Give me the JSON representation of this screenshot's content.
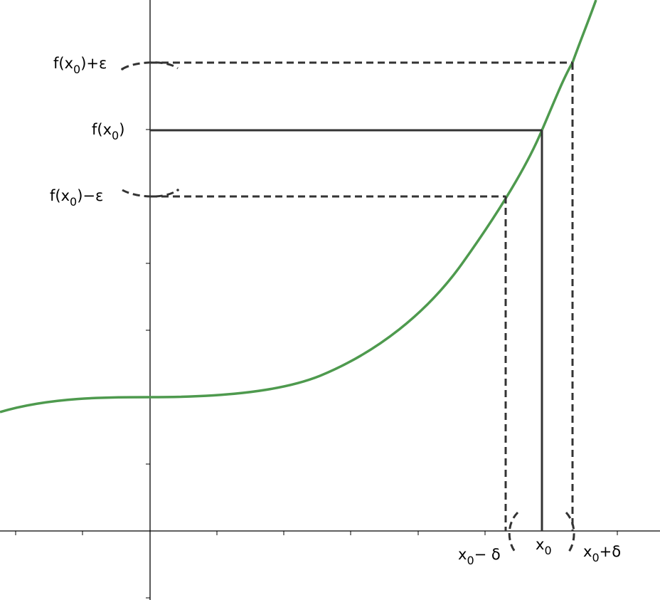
{
  "labels": {
    "f_plus_eps": {
      "main": "f(x",
      "sub": "0",
      "tail": ")+ε"
    },
    "f_x0": {
      "main": "f(x",
      "sub": "0",
      "tail": ")"
    },
    "f_minus_eps": {
      "main": "f(x",
      "sub": "0",
      "tail": ")−ε"
    },
    "x0_minus_delta": {
      "main": "x",
      "sub": "0",
      "tail": "− δ"
    },
    "x0": {
      "main": "x",
      "sub": "0",
      "tail": ""
    },
    "x0_plus_delta": {
      "main": "x",
      "sub": "0",
      "tail": "+δ"
    }
  },
  "colors": {
    "curve": "#4e9a4e",
    "axis": "#000000",
    "guide": "#333333",
    "label": "#000000"
  }
}
